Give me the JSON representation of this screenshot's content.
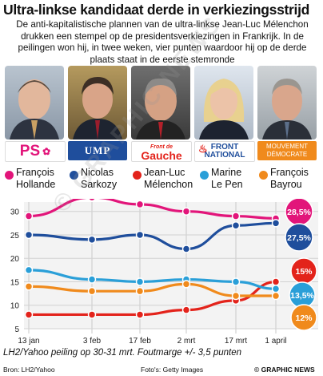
{
  "title": "Ultra-linkse kandidaat derde in verkiezingsstrijd",
  "intro_lines": [
    "De anti-kapitalistische plannen van de ultra-linkse Jean-Luc Mélenchon",
    "drukken een stempel op de presidentsverkiezingen in Frankrijk. In de",
    "peilingen won hij, in twee weken, vier punten waardoor hij op de derde",
    "plaats staat in de eerste stemronde"
  ],
  "logos": [
    "PS",
    "UMP",
    "Gauche",
    "FRONT NATIONAL",
    "MOUVEMENT DÉMOCRATE"
  ],
  "logo_lines": {
    "fn": [
      "FRONT",
      "NATIONAL"
    ],
    "modem": [
      "MOUVEMENT",
      "DÉMOCRATE"
    ],
    "fdg_small": "Front de"
  },
  "legend": [
    {
      "line1": "François",
      "line2": "Hollande",
      "color": "#e2157a"
    },
    {
      "line1": "Nicolas",
      "line2": "Sarkozy",
      "color": "#1f4e9c"
    },
    {
      "line1": "Jean-Luc",
      "line2": "Mélenchon",
      "color": "#e3231b"
    },
    {
      "line1": "Marine",
      "line2": "Le Pen",
      "color": "#2a9fd8"
    },
    {
      "line1": "François",
      "line2": "Bayrou",
      "color": "#f08a1c"
    }
  ],
  "chart_data": {
    "type": "line",
    "x": [
      "13 jan",
      "3 feb",
      "17 feb",
      "2 mrt",
      "17 mrt",
      "1 april"
    ],
    "ylim": [
      5,
      32
    ],
    "yticks": [
      5,
      10,
      15,
      20,
      25,
      30
    ],
    "grid": true,
    "series": [
      {
        "name": "François Hollande",
        "color": "#e2157a",
        "values": [
          29,
          33,
          31.5,
          30,
          29,
          28.5
        ]
      },
      {
        "name": "Nicolas Sarkozy",
        "color": "#1f4e9c",
        "values": [
          25,
          24,
          25,
          22,
          27,
          27.5
        ]
      },
      {
        "name": "Jean-Luc Mélenchon",
        "color": "#e3231b",
        "values": [
          8,
          8,
          8,
          9,
          11,
          15
        ]
      },
      {
        "name": "Marine Le Pen",
        "color": "#2a9fd8",
        "values": [
          17.5,
          15.5,
          15,
          15.5,
          15,
          13.5
        ]
      },
      {
        "name": "François Bayrou",
        "color": "#f08a1c",
        "values": [
          14,
          13,
          13,
          14.5,
          12,
          12
        ]
      }
    ],
    "end_labels": [
      "28,5%",
      "27,5%",
      "15%",
      "13,5%",
      "12%"
    ]
  },
  "footnote": "LH2/Yahoo peiling op 30-31 mrt. Foutmarge +/- 3,5 punten",
  "source": "Bron: LH2/Yahoo",
  "photo_credit": "Foto's: Getty Images",
  "copyright": "© GRAPHIC NEWS",
  "watermark": "© GRAPHIC NEWS"
}
